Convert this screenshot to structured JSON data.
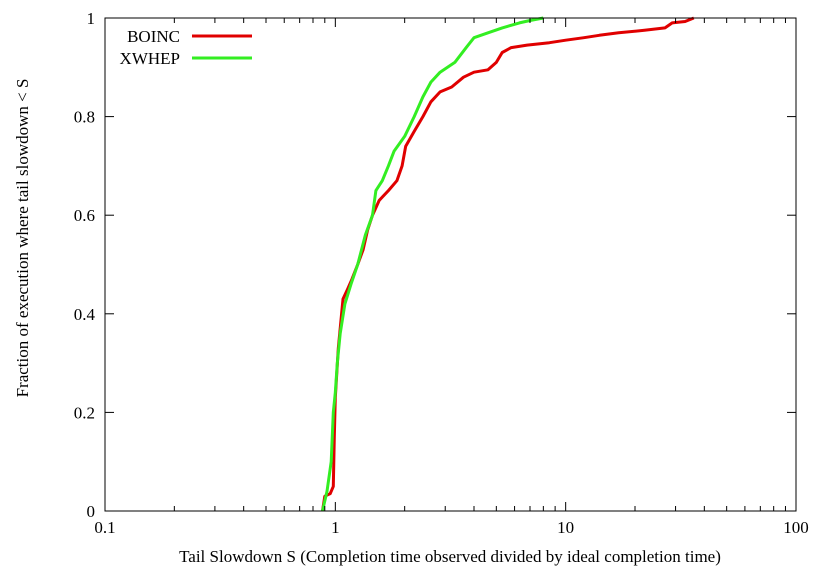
{
  "chart_data": {
    "type": "line",
    "title": "",
    "xlabel": "Tail Slowdown S (Completion time observed divided by ideal completion time)",
    "ylabel": "Fraction of execution where tail slowdown < S",
    "xscale": "log",
    "xlim": [
      0.1,
      100
    ],
    "ylim": [
      0,
      1
    ],
    "xticks": [
      0.1,
      1,
      10,
      100
    ],
    "xtick_labels": [
      "0.1",
      "1",
      "10",
      "100"
    ],
    "yticks": [
      0,
      0.2,
      0.4,
      0.6,
      0.8,
      1
    ],
    "ytick_labels": [
      "0",
      "0.2",
      "0.4",
      "0.6",
      "0.8",
      "1"
    ],
    "grid": false,
    "legend_position": "top-left",
    "series": [
      {
        "name": "BOINC",
        "color": "#e00000",
        "points": [
          [
            0.88,
            0.0
          ],
          [
            0.9,
            0.03
          ],
          [
            0.95,
            0.035
          ],
          [
            0.98,
            0.05
          ],
          [
            0.99,
            0.15
          ],
          [
            1.0,
            0.23
          ],
          [
            1.03,
            0.33
          ],
          [
            1.08,
            0.43
          ],
          [
            1.13,
            0.45
          ],
          [
            1.18,
            0.47
          ],
          [
            1.25,
            0.5
          ],
          [
            1.32,
            0.53
          ],
          [
            1.38,
            0.57
          ],
          [
            1.45,
            0.6
          ],
          [
            1.55,
            0.63
          ],
          [
            1.7,
            0.65
          ],
          [
            1.85,
            0.67
          ],
          [
            1.95,
            0.7
          ],
          [
            2.02,
            0.74
          ],
          [
            2.2,
            0.77
          ],
          [
            2.4,
            0.8
          ],
          [
            2.6,
            0.83
          ],
          [
            2.85,
            0.85
          ],
          [
            3.2,
            0.86
          ],
          [
            3.6,
            0.88
          ],
          [
            4.0,
            0.89
          ],
          [
            4.6,
            0.895
          ],
          [
            5.0,
            0.91
          ],
          [
            5.3,
            0.93
          ],
          [
            5.8,
            0.94
          ],
          [
            6.8,
            0.945
          ],
          [
            8.5,
            0.95
          ],
          [
            10.0,
            0.955
          ],
          [
            12.0,
            0.96
          ],
          [
            14.0,
            0.965
          ],
          [
            17.0,
            0.97
          ],
          [
            22.0,
            0.975
          ],
          [
            27.0,
            0.98
          ],
          [
            29.0,
            0.99
          ],
          [
            33.0,
            0.993
          ],
          [
            36.0,
            1.0
          ]
        ]
      },
      {
        "name": "XWHEP",
        "color": "#33ee22",
        "points": [
          [
            0.88,
            0.0
          ],
          [
            0.92,
            0.04
          ],
          [
            0.96,
            0.1
          ],
          [
            0.98,
            0.2
          ],
          [
            1.0,
            0.24
          ],
          [
            1.02,
            0.3
          ],
          [
            1.05,
            0.36
          ],
          [
            1.1,
            0.42
          ],
          [
            1.17,
            0.46
          ],
          [
            1.25,
            0.5
          ],
          [
            1.35,
            0.56
          ],
          [
            1.45,
            0.6
          ],
          [
            1.5,
            0.65
          ],
          [
            1.6,
            0.67
          ],
          [
            1.7,
            0.7
          ],
          [
            1.8,
            0.73
          ],
          [
            2.0,
            0.76
          ],
          [
            2.2,
            0.8
          ],
          [
            2.4,
            0.84
          ],
          [
            2.6,
            0.87
          ],
          [
            2.85,
            0.89
          ],
          [
            3.3,
            0.91
          ],
          [
            3.7,
            0.94
          ],
          [
            4.0,
            0.96
          ],
          [
            4.6,
            0.97
          ],
          [
            5.3,
            0.98
          ],
          [
            6.3,
            0.99
          ],
          [
            7.0,
            0.995
          ],
          [
            8.0,
            1.0
          ]
        ]
      }
    ]
  }
}
